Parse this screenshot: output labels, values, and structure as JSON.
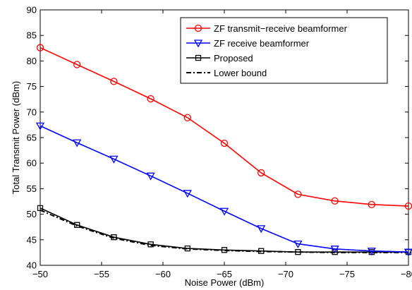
{
  "chart_data": {
    "type": "line",
    "xlabel": "Noise Power (dBm)",
    "ylabel": "Total Transmit Power (dBm)",
    "xlim": [
      -50,
      -80
    ],
    "ylim": [
      40,
      90
    ],
    "x_ticks": [
      -50,
      -55,
      -60,
      -65,
      -70,
      -75,
      -80
    ],
    "x_tick_labels": [
      "−50",
      "−55",
      "−60",
      "−65",
      "−70",
      "−75",
      "−80"
    ],
    "y_ticks": [
      40,
      45,
      50,
      55,
      60,
      65,
      70,
      75,
      80,
      85,
      90
    ],
    "y_tick_labels": [
      "40",
      "45",
      "50",
      "55",
      "60",
      "65",
      "70",
      "75",
      "80",
      "85",
      "90"
    ],
    "x_direction": "reversed",
    "grid": false,
    "legend_position": "top-right",
    "x": [
      -50,
      -53,
      -56,
      -59,
      -62,
      -65,
      -68,
      -71,
      -74,
      -77,
      -80
    ],
    "series": [
      {
        "name": "ZF transmit−receive beamformer",
        "color": "#ff0000",
        "marker": "circle",
        "line_style": "solid",
        "values": [
          82.6,
          79.3,
          76.0,
          72.6,
          68.9,
          63.9,
          58.1,
          53.9,
          52.6,
          51.9,
          51.6
        ]
      },
      {
        "name": "ZF receive beamformer",
        "color": "#0000ff",
        "marker": "triangle-down",
        "line_style": "solid",
        "values": [
          67.3,
          64.0,
          60.8,
          57.5,
          54.1,
          50.6,
          47.2,
          44.2,
          43.2,
          42.8,
          42.6
        ]
      },
      {
        "name": "Proposed",
        "color": "#000000",
        "marker": "square",
        "line_style": "solid",
        "values": [
          51.2,
          47.9,
          45.5,
          44.1,
          43.3,
          43.0,
          42.8,
          42.6,
          42.6,
          42.6,
          42.6
        ]
      },
      {
        "name": "Lower bound",
        "color": "#000000",
        "marker": "none",
        "line_style": "dash-dot",
        "values": [
          50.8,
          47.7,
          45.3,
          43.9,
          43.2,
          42.9,
          42.7,
          42.6,
          42.5,
          42.5,
          42.5
        ]
      }
    ]
  }
}
